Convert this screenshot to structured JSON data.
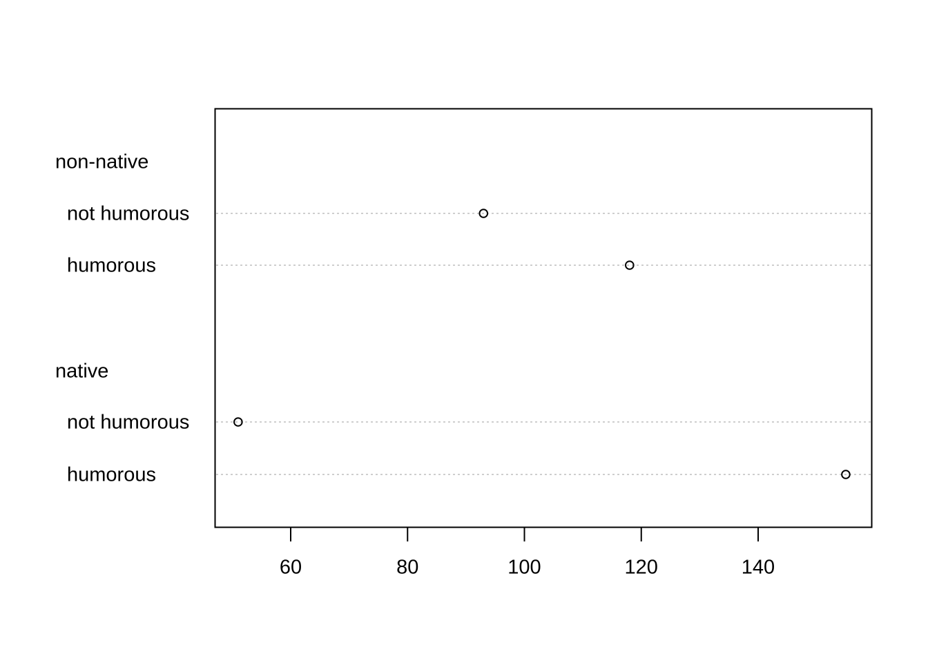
{
  "chart_data": {
    "type": "dotchart",
    "title": "",
    "xlabel": "",
    "ylabel": "",
    "xlim": [
      47,
      159.5
    ],
    "xticks": [
      60,
      80,
      100,
      120,
      140
    ],
    "xtick_labels": [
      "60",
      "80",
      "100",
      "120",
      "140"
    ],
    "grid": "dotted horizontal guide lines per row",
    "legend": "none",
    "groups": [
      {
        "name": "non-native",
        "items": [
          {
            "label": "not humorous",
            "value": 93
          },
          {
            "label": "humorous",
            "value": 118
          }
        ]
      },
      {
        "name": "native",
        "items": [
          {
            "label": "not humorous",
            "value": 51
          },
          {
            "label": "humorous",
            "value": 155
          }
        ]
      }
    ]
  },
  "colors": {
    "axis": "#000000",
    "guide": "#bebebe",
    "point": "#000000"
  }
}
